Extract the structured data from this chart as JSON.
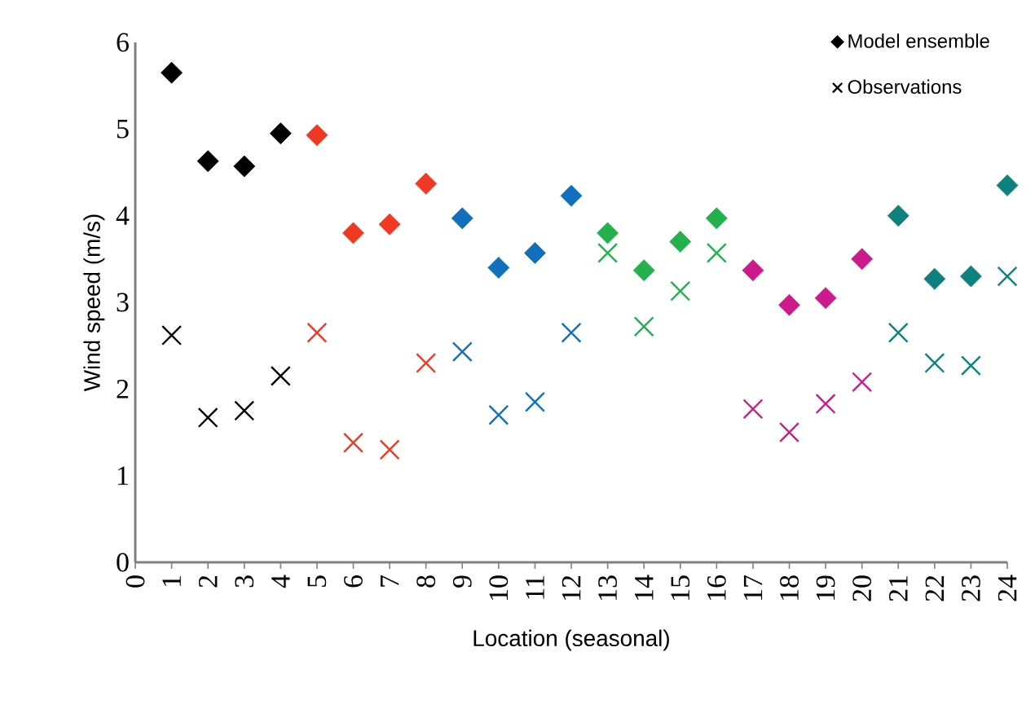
{
  "chart_data": {
    "type": "scatter",
    "xlabel": "Location (seasonal)",
    "ylabel": "Wind speed (m/s)",
    "x": [
      1,
      2,
      3,
      4,
      5,
      6,
      7,
      8,
      9,
      10,
      11,
      12,
      13,
      14,
      15,
      16,
      17,
      18,
      19,
      20,
      21,
      22,
      23,
      24
    ],
    "xlim": [
      0,
      24
    ],
    "xticks": [
      0,
      1,
      2,
      3,
      4,
      5,
      6,
      7,
      8,
      9,
      10,
      11,
      12,
      13,
      14,
      15,
      16,
      17,
      18,
      19,
      20,
      21,
      22,
      23,
      24
    ],
    "ylim": [
      0,
      6
    ],
    "yticks": [
      0,
      1,
      2,
      3,
      4,
      5,
      6
    ],
    "legend": "top right",
    "grid": false,
    "series": [
      {
        "name": "Model ensemble",
        "color": "#000000",
        "marker": "diamond",
        "values": [
          5.65,
          4.63,
          4.57,
          4.95,
          4.93,
          3.8,
          3.9,
          4.37,
          3.97,
          3.4,
          3.57,
          4.23,
          3.8,
          3.37,
          3.7,
          3.97,
          3.37,
          2.97,
          3.05,
          3.5,
          4.0,
          3.27,
          3.3,
          4.35
        ],
        "colors": [
          "#000000",
          "#000000",
          "#000000",
          "#000000",
          "#ee3a24",
          "#ee3a24",
          "#ee3a24",
          "#ee3a24",
          "#1170bd",
          "#1170bd",
          "#1170bd",
          "#1170bd",
          "#22b14c",
          "#22b14c",
          "#22b14c",
          "#22b14c",
          "#cc1a8c",
          "#cc1a8c",
          "#cc1a8c",
          "#cc1a8c",
          "#0e817e",
          "#0e817e",
          "#0e817e",
          "#0e817e"
        ]
      },
      {
        "name": "Observations",
        "color": "#000000",
        "marker": "cross",
        "values": [
          2.62,
          1.67,
          1.75,
          2.15,
          2.65,
          1.38,
          1.3,
          2.3,
          2.43,
          1.7,
          1.85,
          2.65,
          3.57,
          2.72,
          3.13,
          3.57,
          1.77,
          1.5,
          1.83,
          2.08,
          2.65,
          2.3,
          2.27,
          3.3
        ],
        "colors": [
          "#000000",
          "#000000",
          "#000000",
          "#000000",
          "#ee3a24",
          "#ee3a24",
          "#ee3a24",
          "#ee3a24",
          "#1170bd",
          "#1170bd",
          "#1170bd",
          "#1170bd",
          "#22b14c",
          "#22b14c",
          "#22b14c",
          "#22b14c",
          "#cc1a8c",
          "#cc1a8c",
          "#cc1a8c",
          "#cc1a8c",
          "#0e817e",
          "#0e817e",
          "#0e817e",
          "#0e817e"
        ]
      }
    ]
  }
}
